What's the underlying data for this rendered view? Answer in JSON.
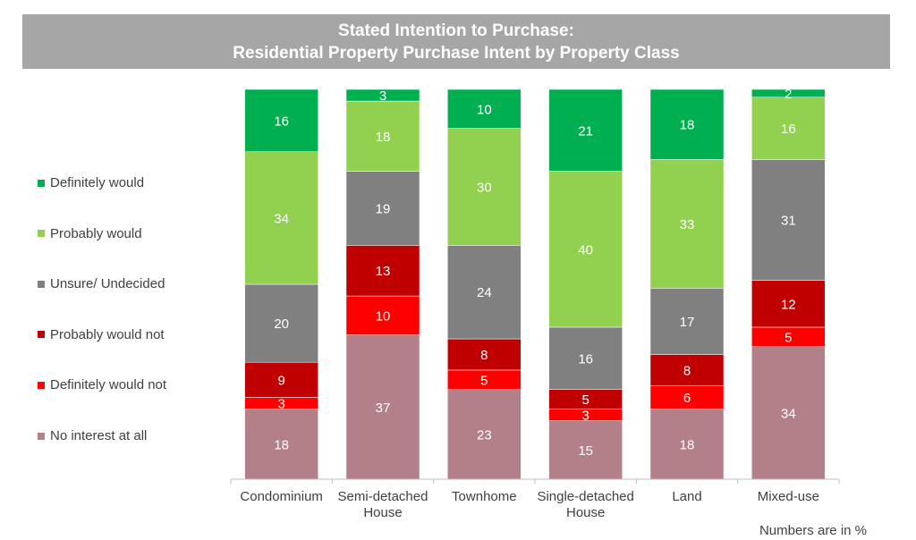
{
  "title": {
    "line1": "Stated Intention to Purchase:",
    "line2": "Residential Property Purchase Intent by Property Class"
  },
  "footnote": "Numbers are in %",
  "colors": {
    "title_bar": "#a6a6a6",
    "axis": "#bfbfbf",
    "label_text": "#ffffff",
    "tick_text": "#404040"
  },
  "chart_data": {
    "type": "bar",
    "stacked": true,
    "orientation": "vertical",
    "categories": [
      "Condominium",
      "Semi-detached House",
      "Townhome",
      "Single-detached House",
      "Land",
      "Mixed-use"
    ],
    "category_label_lines": [
      [
        "Condominium"
      ],
      [
        "Semi-detached",
        "House"
      ],
      [
        "Townhome"
      ],
      [
        "Single-detached",
        "House"
      ],
      [
        "Land"
      ],
      [
        "Mixed-use"
      ]
    ],
    "series": [
      {
        "name": "No interest at all",
        "color": "#b3808a",
        "values": [
          18,
          37,
          23,
          15,
          18,
          34
        ]
      },
      {
        "name": "Definitely would not",
        "color": "#ff0000",
        "values": [
          3,
          10,
          5,
          3,
          6,
          5
        ]
      },
      {
        "name": "Probably would not",
        "color": "#c00000",
        "values": [
          9,
          13,
          8,
          5,
          8,
          12
        ]
      },
      {
        "name": "Unsure/ Undecided",
        "color": "#808080",
        "values": [
          20,
          19,
          24,
          16,
          17,
          31
        ]
      },
      {
        "name": "Probably would",
        "color": "#92d050",
        "values": [
          34,
          18,
          30,
          40,
          33,
          16
        ]
      },
      {
        "name": "Definitely would",
        "color": "#00b050",
        "values": [
          16,
          3,
          10,
          21,
          18,
          2
        ]
      }
    ],
    "legend_order": [
      "Definitely would",
      "Probably would",
      "Unsure/ Undecided",
      "Probably would not",
      "Definitely would not",
      "No interest at all"
    ],
    "legend_position": "left",
    "ylim": [
      0,
      100
    ],
    "grid": false,
    "data_labels": true
  }
}
